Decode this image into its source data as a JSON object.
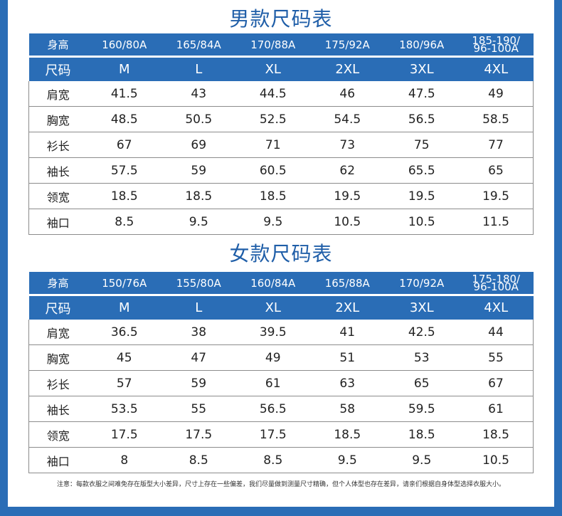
{
  "men": {
    "title": "男款尺码表",
    "height_label": "身高",
    "heights": [
      "160/80A",
      "165/84A",
      "170/88A",
      "175/92A",
      "180/96A",
      "185-190/\n96-100A"
    ],
    "size_label": "尺码",
    "sizes": [
      "M",
      "L",
      "XL",
      "2XL",
      "3XL",
      "4XL"
    ],
    "rows": [
      {
        "label": "肩宽",
        "values": [
          "41.5",
          "43",
          "44.5",
          "46",
          "47.5",
          "49"
        ]
      },
      {
        "label": "胸宽",
        "values": [
          "48.5",
          "50.5",
          "52.5",
          "54.5",
          "56.5",
          "58.5"
        ]
      },
      {
        "label": "衫长",
        "values": [
          "67",
          "69",
          "71",
          "73",
          "75",
          "77"
        ]
      },
      {
        "label": "袖长",
        "values": [
          "57.5",
          "59",
          "60.5",
          "62",
          "65.5",
          "65"
        ]
      },
      {
        "label": "领宽",
        "values": [
          "18.5",
          "18.5",
          "18.5",
          "19.5",
          "19.5",
          "19.5"
        ]
      },
      {
        "label": "袖口",
        "values": [
          "8.5",
          "9.5",
          "9.5",
          "10.5",
          "10.5",
          "11.5"
        ]
      }
    ]
  },
  "women": {
    "title": "女款尺码表",
    "height_label": "身高",
    "heights": [
      "150/76A",
      "155/80A",
      "160/84A",
      "165/88A",
      "170/92A",
      "175-180/\n96-100A"
    ],
    "size_label": "尺码",
    "sizes": [
      "M",
      "L",
      "XL",
      "2XL",
      "3XL",
      "4XL"
    ],
    "rows": [
      {
        "label": "肩宽",
        "values": [
          "36.5",
          "38",
          "39.5",
          "41",
          "42.5",
          "44"
        ]
      },
      {
        "label": "胸宽",
        "values": [
          "45",
          "47",
          "49",
          "51",
          "53",
          "55"
        ]
      },
      {
        "label": "衫长",
        "values": [
          "57",
          "59",
          "61",
          "63",
          "65",
          "67"
        ]
      },
      {
        "label": "袖长",
        "values": [
          "53.5",
          "55",
          "56.5",
          "58",
          "59.5",
          "61"
        ]
      },
      {
        "label": "领宽",
        "values": [
          "17.5",
          "17.5",
          "17.5",
          "18.5",
          "18.5",
          "18.5"
        ]
      },
      {
        "label": "袖口",
        "values": [
          "8",
          "8.5",
          "8.5",
          "9.5",
          "9.5",
          "10.5"
        ]
      }
    ]
  },
  "note": "注意：每款衣服之间难免存在版型大小差异，尺寸上存在一些偏差，我们尽量做到测量尺寸精确，但个人体型也存在差异，请亲们根据自身体型选择衣服大小。",
  "colors": {
    "accent": "#2a6db6",
    "title": "#1f5ea8"
  }
}
